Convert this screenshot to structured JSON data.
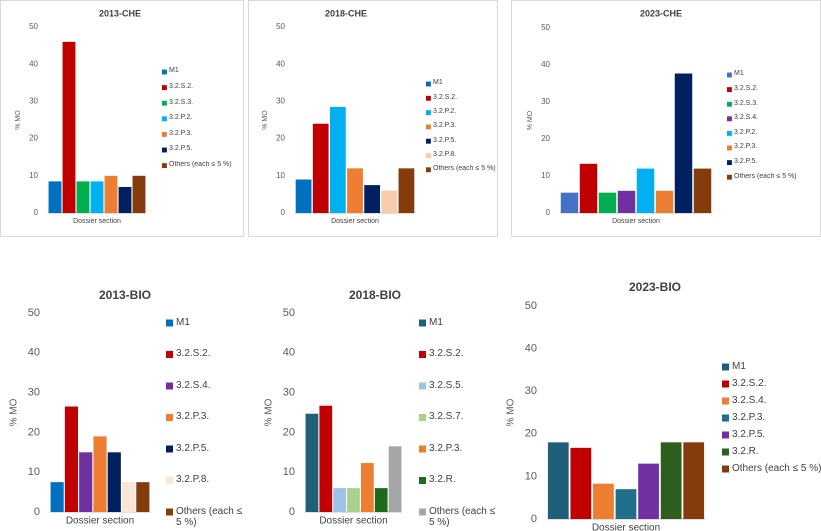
{
  "chart_data": [
    {
      "type": "bar",
      "title": "2013-CHE",
      "y_label": "% MO",
      "x_label": "Dossier section",
      "categories": [
        "M1",
        "3.2.S.2.",
        "3.2.S.3.",
        "3.2.P.2.",
        "3.2.P.3.",
        "3.2.P.5.",
        "Others (each ≤ 5 %)"
      ],
      "values": [
        8.5,
        46,
        8.5,
        8.5,
        10,
        7,
        10
      ],
      "colors": [
        "#0070c0",
        "#c00000",
        "#00b050",
        "#00b0f0",
        "#ed7d31",
        "#002060",
        "#843c0c"
      ],
      "ylim": [
        0,
        50
      ],
      "yticks": [
        0,
        10,
        20,
        30,
        40,
        50
      ]
    },
    {
      "type": "bar",
      "title": "2018-CHE",
      "y_label": "% MO",
      "x_label": "Dossier section",
      "categories": [
        "M1",
        "3.2.S.2.",
        "3.2.P.2.",
        "3.2.P.3.",
        "3.2.P.5.",
        "3.2.P.8.",
        "Others (each ≤ 5 %)"
      ],
      "values": [
        9,
        24,
        28.5,
        12,
        7.5,
        6,
        12
      ],
      "colors": [
        "#0070c0",
        "#c00000",
        "#00b0f0",
        "#ed7d31",
        "#002060",
        "#f8cbad",
        "#843c0c"
      ],
      "ylim": [
        0,
        50
      ],
      "yticks": [
        0,
        10,
        20,
        30,
        40,
        50
      ]
    },
    {
      "type": "bar",
      "title": "2023-CHE",
      "y_label": "% MO",
      "x_label": "Dossier section",
      "categories": [
        "M1",
        "3.2.S.2.",
        "3.2.S.3.",
        "3.2.S.4.",
        "3.2.P.2.",
        "3.2.P.3.",
        "3.2.P.5.",
        "Others (each ≤ 5 %)"
      ],
      "values": [
        5.5,
        13.3,
        5.5,
        6,
        12,
        6,
        37.7,
        12
      ],
      "colors": [
        "#4472c4",
        "#c00000",
        "#00b050",
        "#7030a0",
        "#00b0f0",
        "#ed7d31",
        "#002060",
        "#843c0c"
      ],
      "ylim": [
        0,
        50
      ],
      "yticks": [
        0,
        10,
        20,
        30,
        40,
        50
      ]
    },
    {
      "type": "bar",
      "title": "2013-BIO",
      "y_label": "% MO",
      "x_label": "Dossier section",
      "categories": [
        "M1",
        "3.2.S.2.",
        "3.2.S.4.",
        "3.2.P.3.",
        "3.2.P.5.",
        "3.2.P.8.",
        "Others (each ≤ 5 %)"
      ],
      "values": [
        7.5,
        26.5,
        15,
        19,
        15,
        7.5,
        7.5
      ],
      "colors": [
        "#0070c0",
        "#c00000",
        "#7030a0",
        "#ed7d31",
        "#002060",
        "#fbe5d6",
        "#843c0c"
      ],
      "ylim": [
        0,
        50
      ],
      "yticks": [
        0,
        10,
        20,
        30,
        40,
        50
      ]
    },
    {
      "type": "bar",
      "title": "2018-BIO",
      "y_label": "% MO",
      "x_label": "Dossier section",
      "categories": [
        "M1",
        "3.2.S.2.",
        "3.2.S.5.",
        "3.2.S.7.",
        "3.2.P.3.",
        "3.2.R.",
        "Others (each ≤ 5 %)"
      ],
      "values": [
        24.7,
        26.7,
        6,
        6,
        12.3,
        6,
        16.5
      ],
      "colors": [
        "#1f5f7a",
        "#c00000",
        "#9dc3e6",
        "#a9d18e",
        "#ed7d31",
        "#1e6b1e",
        "#a6a6a6"
      ],
      "ylim": [
        0,
        50
      ],
      "yticks": [
        0,
        10,
        20,
        30,
        40,
        50
      ]
    },
    {
      "type": "bar",
      "title": "2023-BIO",
      "y_label": "% MO",
      "x_label": "Dossier section",
      "categories": [
        "M1",
        "3.2.S.2.",
        "3.2.S.4.",
        "3.2.P.3.",
        "3.2.P.5.",
        "3.2.R.",
        "Others (each ≤ 5 %)"
      ],
      "values": [
        18,
        16.7,
        8.3,
        7,
        13,
        18,
        18
      ],
      "colors": [
        "#1f5f7a",
        "#c00000",
        "#ed7d31",
        "#1f6f8b",
        "#7030a0",
        "#2e5e1e",
        "#843c0c"
      ],
      "ylim": [
        0,
        50
      ],
      "yticks": [
        0,
        10,
        20,
        30,
        40,
        50
      ]
    }
  ]
}
